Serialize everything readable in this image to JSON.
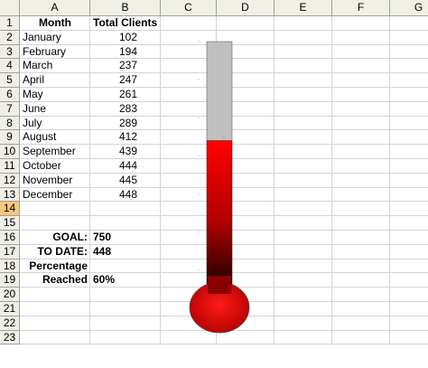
{
  "columns": [
    "A",
    "B",
    "C",
    "D",
    "E",
    "F",
    "G"
  ],
  "rows": [
    "1",
    "2",
    "3",
    "4",
    "5",
    "6",
    "7",
    "8",
    "9",
    "10",
    "11",
    "12",
    "13",
    "14",
    "15",
    "16",
    "17",
    "18",
    "19",
    "20",
    "21",
    "22",
    "23"
  ],
  "selected_row": "14",
  "headers": {
    "month": "Month",
    "total_clients": "Total Clients"
  },
  "data_rows": [
    {
      "month": "January",
      "clients": "102"
    },
    {
      "month": "February",
      "clients": "194"
    },
    {
      "month": "March",
      "clients": "237"
    },
    {
      "month": "April",
      "clients": "247"
    },
    {
      "month": "May",
      "clients": "261"
    },
    {
      "month": "June",
      "clients": "283"
    },
    {
      "month": "July",
      "clients": "289"
    },
    {
      "month": "August",
      "clients": "412"
    },
    {
      "month": "September",
      "clients": "439"
    },
    {
      "month": "October",
      "clients": "444"
    },
    {
      "month": "November",
      "clients": "445"
    },
    {
      "month": "December",
      "clients": "448"
    }
  ],
  "summary": {
    "goal_label": "GOAL:",
    "goal_value": "750",
    "to_date_label": "TO DATE:",
    "to_date_value": "448",
    "percentage_label_1": "Percentage",
    "percentage_label_2": "Reached",
    "percentage_value": "60%"
  },
  "thermometer": {
    "fill_fraction": 0.6,
    "fill_color_top": "#ff0000",
    "fill_color_bottom": "#1a0000",
    "empty_color": "#c0c0c0",
    "bulb_color": "#e00000"
  }
}
